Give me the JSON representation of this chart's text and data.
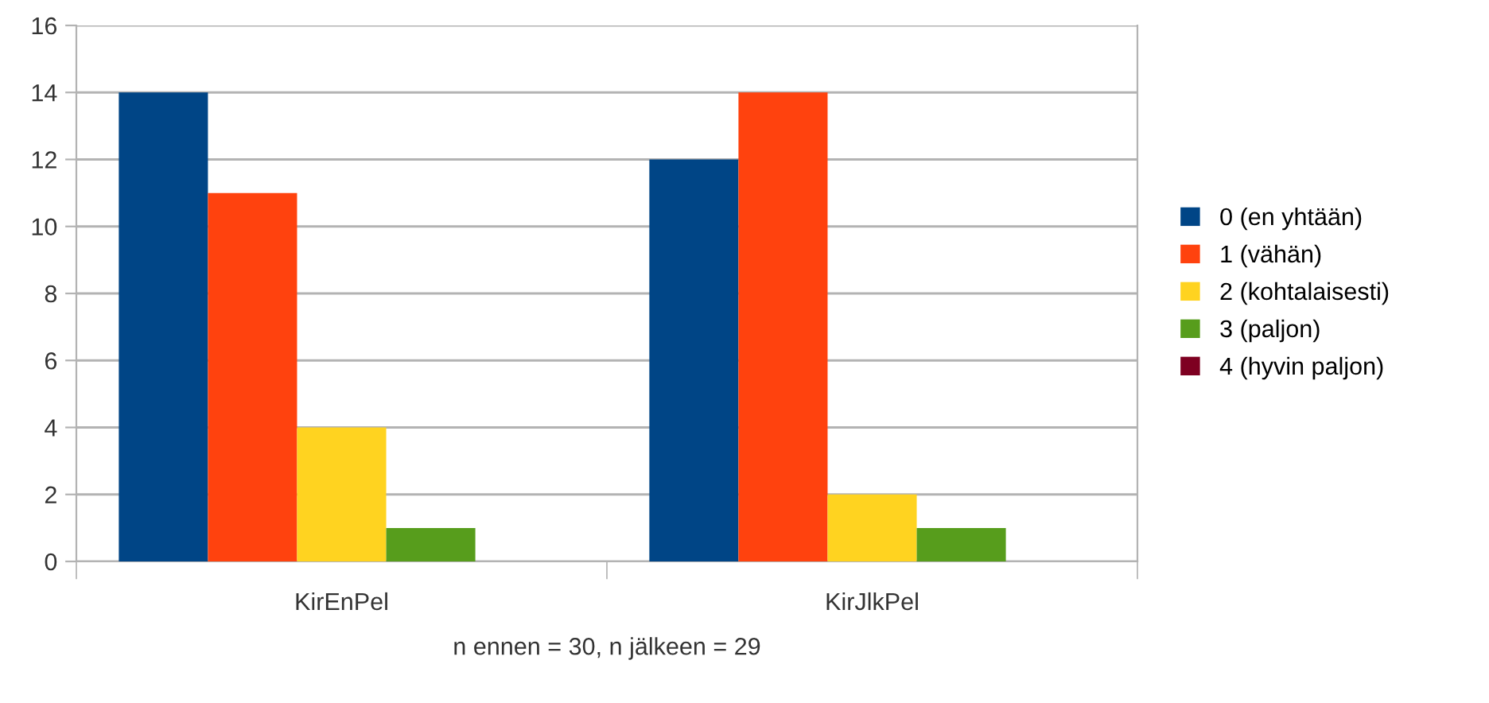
{
  "chart_data": {
    "type": "bar",
    "categories": [
      "KirEnPel",
      "KirJlkPel"
    ],
    "series": [
      {
        "name": "0 (en yhtään)",
        "color": "#004586",
        "values": [
          14,
          12
        ]
      },
      {
        "name": "1 (vähän)",
        "color": "#ff420e",
        "values": [
          11,
          14
        ]
      },
      {
        "name": "2 (kohtalaisesti)",
        "color": "#ffd320",
        "values": [
          4,
          2
        ]
      },
      {
        "name": "3 (paljon)",
        "color": "#579d1c",
        "values": [
          1,
          1
        ]
      },
      {
        "name": "4 (hyvin paljon)",
        "color": "#7e0021",
        "values": [
          0,
          0
        ]
      }
    ],
    "xlabel": "n ennen = 30, n jälkeen = 29",
    "ylim": [
      0,
      16
    ],
    "yticks": [
      0,
      2,
      4,
      6,
      8,
      10,
      12,
      14,
      16
    ],
    "grid": "y",
    "legend": "right"
  }
}
